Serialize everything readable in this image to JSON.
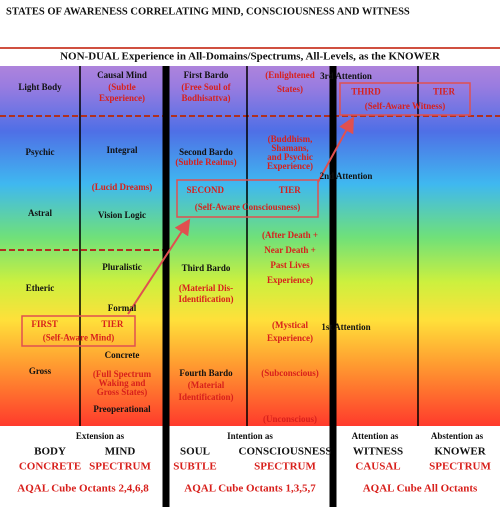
{
  "title": "STATES OF AWARENESS CORRELATING MIND, CONSCIOUSNESS AND WITNESS",
  "banner": "NON-DUAL Experience in All-Domains/Spectrums, All-Levels, as the KNOWER",
  "body_levels": [
    "Light Body",
    "Psychic",
    "Astral",
    "Etheric",
    "Gross"
  ],
  "mind": {
    "levels": [
      "Causal Mind",
      "Integral",
      "Vision Logic",
      "Pluralistic",
      "Formal",
      "Concrete",
      "Preoperational"
    ],
    "notes": [
      [
        "(Subtle",
        "Experience)"
      ],
      [
        "(Lucid Dreams)"
      ],
      [
        "(Full Spectrum",
        "Waking and",
        "Gross States)"
      ]
    ]
  },
  "soul": {
    "levels": [
      "First Bardo",
      "Second Bardo",
      "Third Bardo",
      "Fourth Bardo"
    ],
    "notes": [
      [
        "(Free Soul of",
        "Bodhisattva)"
      ],
      [
        "(Subtle Realms)"
      ],
      [
        "(Material Dis-",
        "Identification)"
      ],
      [
        "(Material",
        "Identification)"
      ]
    ]
  },
  "consciousness": {
    "notes": [
      [
        "(Enlightened",
        "States)"
      ],
      [
        "(Buddhism,",
        "Shamans,",
        "and Psychic",
        "Experience)"
      ],
      [
        "(After Death +",
        "Near Death +",
        "Past Lives",
        "Experience)"
      ],
      [
        "(Mystical",
        "Experience)"
      ],
      [
        "(Subconscious)"
      ],
      [
        "(Unconscious)"
      ]
    ]
  },
  "witness": {
    "levels": [
      "3rd Attention",
      "2nd Attention",
      "1st Attention"
    ]
  },
  "tiers": [
    {
      "left": "FIRST",
      "right": "TIER",
      "caption": "(Self-Aware Mind)"
    },
    {
      "left": "SECOND",
      "right": "TIER",
      "caption": "(Self-Aware Consciousness)"
    },
    {
      "left": "THIRD",
      "right": "TIER",
      "caption": "(Self-Aware Witness)"
    }
  ],
  "footer": {
    "modes": [
      "Extension as",
      "Intention as",
      "Attention as",
      "Abstention as"
    ],
    "aspects": [
      "BODY",
      "MIND",
      "SOUL",
      "CONSCIOUSNESS",
      "WITNESS",
      "KNOWER"
    ],
    "spectrums": [
      "CONCRETE",
      "SPECTRUM",
      "SUBTLE",
      "SPECTRUM",
      "CAUSAL",
      "SPECTRUM"
    ],
    "octants": [
      "AQAL Cube Octants 2,4,6,8",
      "AQAL Cube Octants 1,3,5,7",
      "AQAL Cube All Octants"
    ]
  }
}
